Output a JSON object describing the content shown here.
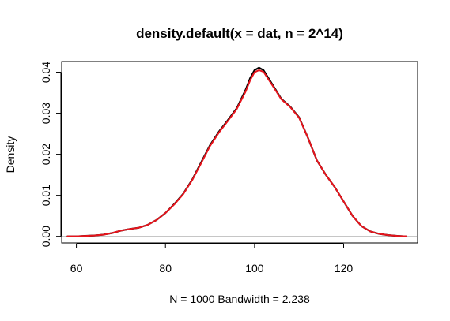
{
  "chart_data": {
    "type": "line",
    "title": "density.default(x = dat, n = 2^14)",
    "xlabel": "N = 1000   Bandwidth = 2.238",
    "ylabel": "Density",
    "xlim": [
      56.7,
      136.6
    ],
    "ylim": [
      -0.0016,
      0.0426
    ],
    "x_ticks": [
      60,
      80,
      100,
      120
    ],
    "y_ticks": [
      0.0,
      0.01,
      0.02,
      0.03,
      0.04
    ],
    "y_tick_labels": [
      "0.00",
      "0.01",
      "0.02",
      "0.03",
      "0.04"
    ],
    "grid": false,
    "legend": "none",
    "baseline": 0,
    "series": [
      {
        "color": "#000000",
        "x": [
          58,
          60,
          62,
          64,
          66,
          68,
          70,
          72,
          74,
          76,
          78,
          80,
          82,
          84,
          86,
          88,
          90,
          92,
          94,
          96,
          98,
          99,
          100,
          101,
          102,
          104,
          106,
          108,
          110,
          112,
          114,
          116,
          118,
          120,
          122,
          124,
          126,
          128,
          130,
          132,
          134
        ],
        "values": [
          0.0,
          0.0,
          0.0001,
          0.0002,
          0.0004,
          0.0008,
          0.0014,
          0.0018,
          0.0021,
          0.0028,
          0.004,
          0.0057,
          0.0079,
          0.0104,
          0.0138,
          0.018,
          0.0222,
          0.0255,
          0.0283,
          0.0312,
          0.0357,
          0.0385,
          0.0405,
          0.0411,
          0.0405,
          0.037,
          0.0335,
          0.0316,
          0.029,
          0.024,
          0.0185,
          0.015,
          0.012,
          0.0085,
          0.005,
          0.0025,
          0.0012,
          0.0006,
          0.0003,
          0.0001,
          0.0
        ]
      },
      {
        "color": "#e8141c",
        "x": [
          58,
          60,
          62,
          64,
          66,
          68,
          70,
          72,
          74,
          76,
          78,
          80,
          82,
          84,
          86,
          88,
          90,
          92,
          94,
          96,
          98,
          99,
          100,
          101,
          102,
          104,
          106,
          108,
          110,
          112,
          114,
          116,
          118,
          120,
          122,
          124,
          126,
          128,
          130,
          132,
          134
        ],
        "values": [
          0.0,
          0.0,
          0.0001,
          0.0002,
          0.0004,
          0.0008,
          0.0014,
          0.0018,
          0.0021,
          0.0028,
          0.004,
          0.0057,
          0.0078,
          0.0103,
          0.0137,
          0.0178,
          0.022,
          0.0253,
          0.0281,
          0.031,
          0.0353,
          0.038,
          0.04,
          0.0405,
          0.0401,
          0.0368,
          0.0334,
          0.0315,
          0.0289,
          0.024,
          0.0185,
          0.015,
          0.012,
          0.0085,
          0.005,
          0.0025,
          0.0012,
          0.0006,
          0.0003,
          0.0001,
          0.0
        ]
      }
    ]
  }
}
